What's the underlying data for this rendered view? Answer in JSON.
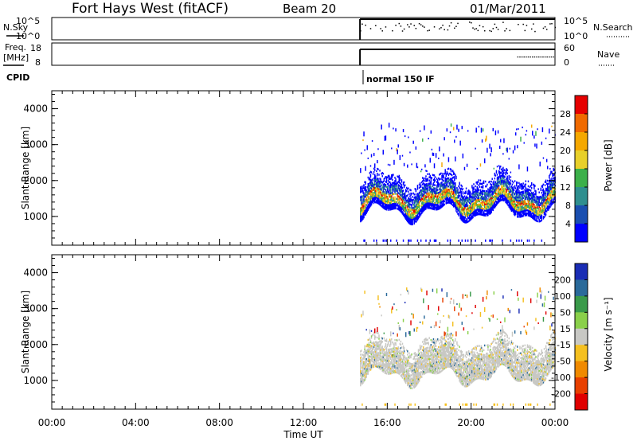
{
  "header": {
    "station": "Fort Hays West (fitACF)",
    "beam": "Beam 20",
    "date": "01/Mar/2011"
  },
  "top_panels": {
    "nsky_label": "N.Sky",
    "nsky_ticks": [
      "10^5",
      "10^0"
    ],
    "nsearch_label": "N.Search",
    "nsearch_ticks": [
      "10^5",
      "10^0"
    ],
    "freq_label": "Freq.",
    "freq_unit": "[MHz]",
    "freq_ticks": [
      "18",
      "8"
    ],
    "nave_label": "Nave",
    "nave_ticks": [
      "60",
      "0"
    ],
    "cpid_label": "CPID",
    "cpid_text": "normal 150 IF"
  },
  "chart_data": [
    {
      "type": "heatmap",
      "name": "power",
      "ylabel": "Slant Range [km]",
      "ylim": [
        200,
        4500
      ],
      "yticks": [
        "1000",
        "2000",
        "3000",
        "4000"
      ],
      "colorbar_label": "Power [dB]",
      "colorbar_ticks": [
        "4",
        "8",
        "12",
        "16",
        "20",
        "24",
        "28"
      ],
      "colors": [
        "#0000ff",
        "#1a4fb0",
        "#2f8f8f",
        "#3cb04a",
        "#e8d02a",
        "#f5a800",
        "#f06a00",
        "#e60000"
      ],
      "data_start_hour": 14.7
    },
    {
      "type": "heatmap",
      "name": "velocity",
      "ylabel": "Slant Range [km]",
      "ylim": [
        200,
        4500
      ],
      "yticks": [
        "1000",
        "2000",
        "3000",
        "4000"
      ],
      "colorbar_label": "Velocity [m s⁻¹]",
      "colorbar_ticks": [
        "200",
        "100",
        "50",
        "15",
        "-15",
        "-50",
        "-100",
        "-200"
      ],
      "colors": [
        "#1a2db5",
        "#2a6a9a",
        "#3a9a4a",
        "#8ad04a",
        "#c8c8c4",
        "#f5c020",
        "#f08a00",
        "#e84000",
        "#e00000"
      ],
      "data_start_hour": 14.7
    }
  ],
  "xaxis": {
    "ticks": [
      "00:00",
      "04:00",
      "08:00",
      "12:00",
      "16:00",
      "20:00",
      "00:00"
    ],
    "label": "Time UT"
  }
}
